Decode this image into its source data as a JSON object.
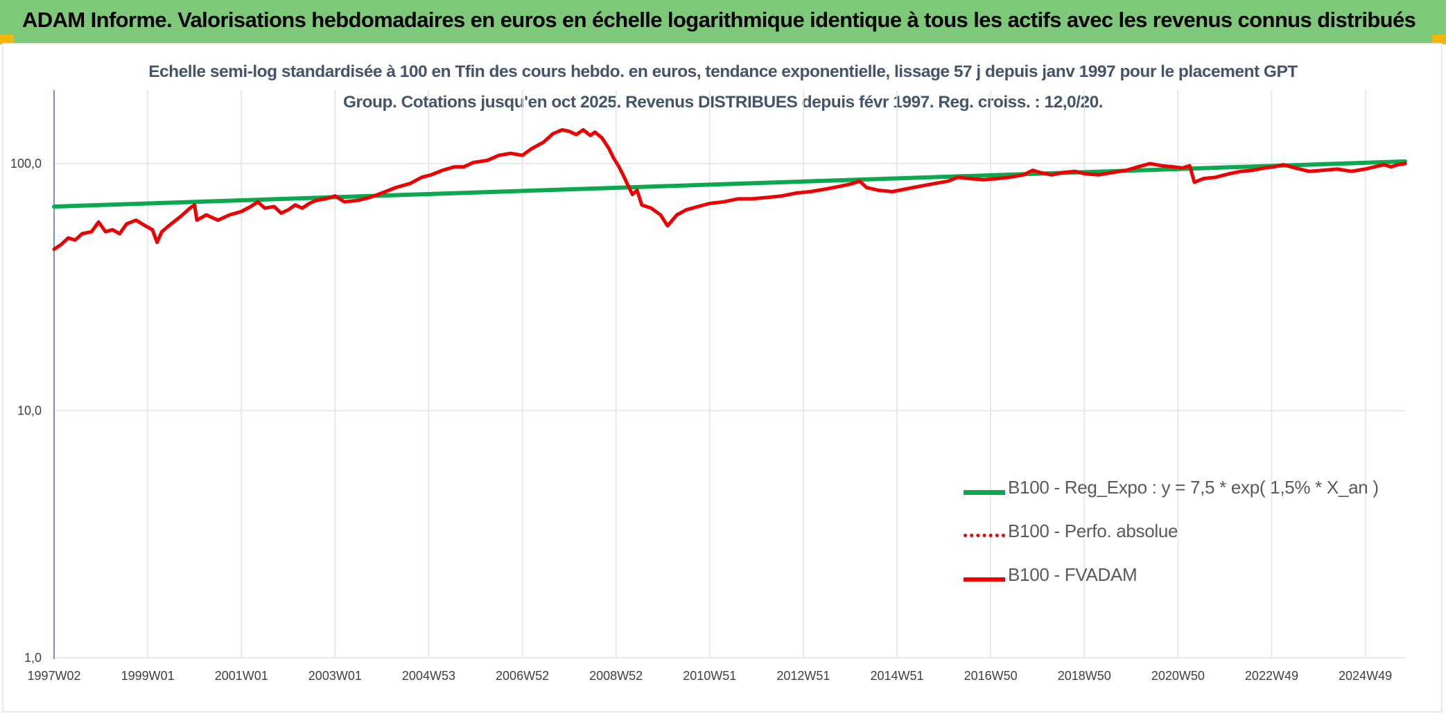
{
  "header": {
    "title": "ADAM Informe. Valorisations hebdomadaires en euros en échelle logarithmique identique à tous les actifs avec les revenus connus distribués"
  },
  "colors": {
    "header_bg": "#7ec87a",
    "corner": "#f2b705",
    "green": "#0aa84f",
    "red": "#ee0000",
    "grid": "#dde3ea",
    "axis": "#4472c4",
    "subtitle": "#44546a"
  },
  "chart_data": {
    "type": "line",
    "subtitle": "Echelle semi-log standardisée à 100 en Tfin des cours hebdo. en euros, tendance exponentielle, lissage 57 j depuis janv 1997 pour le placement GPT Group. Cotations jusqu'en oct 2025. Revenus DISTRIBUES depuis févr 1997. Reg. croiss. : 12,0/20.",
    "y_scale": "log",
    "ylim": [
      1,
      200
    ],
    "xlim": [
      1997.0,
      2025.85
    ],
    "y_ticks": [
      {
        "value": 1,
        "label": "1,0"
      },
      {
        "value": 10,
        "label": "10,0"
      },
      {
        "value": 100,
        "label": "100,0"
      }
    ],
    "x_ticks": [
      {
        "value": 1997.0,
        "label": "1997W02"
      },
      {
        "value": 1999.0,
        "label": "1999W01"
      },
      {
        "value": 2001.0,
        "label": "2001W01"
      },
      {
        "value": 2003.0,
        "label": "2003W01"
      },
      {
        "value": 2005.0,
        "label": "2004W53"
      },
      {
        "value": 2007.0,
        "label": "2006W52"
      },
      {
        "value": 2009.0,
        "label": "2008W52"
      },
      {
        "value": 2011.0,
        "label": "2010W51"
      },
      {
        "value": 2013.0,
        "label": "2012W51"
      },
      {
        "value": 2015.0,
        "label": "2014W51"
      },
      {
        "value": 2017.0,
        "label": "2016W50"
      },
      {
        "value": 2019.0,
        "label": "2018W50"
      },
      {
        "value": 2021.0,
        "label": "2020W50"
      },
      {
        "value": 2023.0,
        "label": "2022W49"
      },
      {
        "value": 2025.0,
        "label": "2024W49"
      }
    ],
    "grid": true,
    "legend": {
      "position": "bottom-right"
    },
    "series": [
      {
        "name": "B100 - Reg_Expo : y = 7,5 * exp( 1,5% *  X_an )",
        "color": "#0aa84f",
        "style": "solid",
        "points": [
          [
            1997.0,
            67.0
          ],
          [
            2025.85,
            102.0
          ]
        ]
      },
      {
        "name": "B100 - Perfo. absolue",
        "color": "#ee0000",
        "style": "dotted",
        "points": []
      },
      {
        "name": "B100 - FVADAM",
        "color": "#ee0000",
        "style": "solid",
        "points": [
          [
            1997.0,
            45
          ],
          [
            1997.15,
            47
          ],
          [
            1997.3,
            50
          ],
          [
            1997.45,
            49
          ],
          [
            1997.6,
            52
          ],
          [
            1997.8,
            53
          ],
          [
            1997.95,
            58
          ],
          [
            1998.1,
            53
          ],
          [
            1998.25,
            54
          ],
          [
            1998.4,
            52
          ],
          [
            1998.55,
            57
          ],
          [
            1998.75,
            59
          ],
          [
            1998.95,
            56
          ],
          [
            1999.1,
            54
          ],
          [
            1999.2,
            48
          ],
          [
            1999.3,
            53
          ],
          [
            1999.5,
            57
          ],
          [
            1999.7,
            61
          ],
          [
            1999.9,
            66
          ],
          [
            2000.0,
            68
          ],
          [
            2000.05,
            59
          ],
          [
            2000.25,
            62
          ],
          [
            2000.5,
            59
          ],
          [
            2000.75,
            62
          ],
          [
            2001.0,
            64
          ],
          [
            2001.2,
            67
          ],
          [
            2001.35,
            70
          ],
          [
            2001.5,
            66
          ],
          [
            2001.7,
            67
          ],
          [
            2001.85,
            63
          ],
          [
            2002.0,
            65
          ],
          [
            2002.15,
            68
          ],
          [
            2002.3,
            66
          ],
          [
            2002.45,
            69
          ],
          [
            2002.6,
            71
          ],
          [
            2002.8,
            72
          ],
          [
            2003.0,
            74
          ],
          [
            2003.2,
            70
          ],
          [
            2003.5,
            71
          ],
          [
            2003.75,
            73
          ],
          [
            2004.0,
            76
          ],
          [
            2004.3,
            80
          ],
          [
            2004.6,
            83
          ],
          [
            2004.85,
            88
          ],
          [
            2005.05,
            90
          ],
          [
            2005.3,
            94
          ],
          [
            2005.55,
            97
          ],
          [
            2005.75,
            97
          ],
          [
            2005.95,
            101
          ],
          [
            2006.25,
            103
          ],
          [
            2006.5,
            108
          ],
          [
            2006.75,
            110
          ],
          [
            2007.0,
            108
          ],
          [
            2007.2,
            115
          ],
          [
            2007.45,
            122
          ],
          [
            2007.65,
            132
          ],
          [
            2007.85,
            137
          ],
          [
            2008.0,
            135
          ],
          [
            2008.15,
            131
          ],
          [
            2008.3,
            137
          ],
          [
            2008.45,
            130
          ],
          [
            2008.55,
            134
          ],
          [
            2008.7,
            127
          ],
          [
            2008.85,
            115
          ],
          [
            2008.95,
            105
          ],
          [
            2009.05,
            98
          ],
          [
            2009.15,
            90
          ],
          [
            2009.25,
            82
          ],
          [
            2009.35,
            75
          ],
          [
            2009.45,
            78
          ],
          [
            2009.55,
            68
          ],
          [
            2009.75,
            66
          ],
          [
            2009.95,
            62
          ],
          [
            2010.1,
            56
          ],
          [
            2010.3,
            62
          ],
          [
            2010.5,
            65
          ],
          [
            2010.75,
            67
          ],
          [
            2011.0,
            69
          ],
          [
            2011.3,
            70
          ],
          [
            2011.6,
            72
          ],
          [
            2011.9,
            72
          ],
          [
            2012.25,
            73
          ],
          [
            2012.55,
            74
          ],
          [
            2012.85,
            76
          ],
          [
            2013.15,
            77
          ],
          [
            2013.5,
            79
          ],
          [
            2013.8,
            81
          ],
          [
            2014.05,
            83
          ],
          [
            2014.2,
            85
          ],
          [
            2014.35,
            80
          ],
          [
            2014.6,
            78
          ],
          [
            2014.9,
            77
          ],
          [
            2015.2,
            79
          ],
          [
            2015.5,
            81
          ],
          [
            2015.8,
            83
          ],
          [
            2016.1,
            85
          ],
          [
            2016.3,
            88
          ],
          [
            2016.55,
            87
          ],
          [
            2016.85,
            86
          ],
          [
            2017.15,
            87
          ],
          [
            2017.4,
            88
          ],
          [
            2017.7,
            90
          ],
          [
            2017.9,
            94
          ],
          [
            2018.05,
            92
          ],
          [
            2018.3,
            90
          ],
          [
            2018.55,
            92
          ],
          [
            2018.8,
            93
          ],
          [
            2019.0,
            91
          ],
          [
            2019.3,
            90
          ],
          [
            2019.6,
            92
          ],
          [
            2019.9,
            94
          ],
          [
            2020.15,
            97
          ],
          [
            2020.4,
            100
          ],
          [
            2020.65,
            98
          ],
          [
            2020.9,
            97
          ],
          [
            2021.1,
            96
          ],
          [
            2021.25,
            98
          ],
          [
            2021.35,
            84
          ],
          [
            2021.55,
            87
          ],
          [
            2021.8,
            88
          ],
          [
            2022.1,
            91
          ],
          [
            2022.35,
            93
          ],
          [
            2022.6,
            94
          ],
          [
            2022.85,
            96
          ],
          [
            2023.05,
            97
          ],
          [
            2023.25,
            99
          ],
          [
            2023.5,
            96
          ],
          [
            2023.8,
            93
          ],
          [
            2024.1,
            94
          ],
          [
            2024.4,
            95
          ],
          [
            2024.7,
            93
          ],
          [
            2025.0,
            95
          ],
          [
            2025.2,
            97
          ],
          [
            2025.4,
            99
          ],
          [
            2025.55,
            97
          ],
          [
            2025.7,
            99
          ],
          [
            2025.85,
            100
          ]
        ]
      }
    ]
  }
}
